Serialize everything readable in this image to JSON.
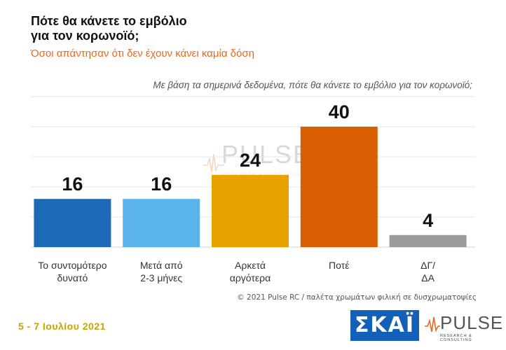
{
  "header": {
    "title_line1": "Πότε θα κάνετε το εμβόλιο",
    "title_line2": "για τον κορωνοϊό;",
    "subtitle": "Όσοι απάντησαν ότι δεν έχουν κάνει καμία δόση",
    "question": "Με βάση τα σημερινά δεδομένα, πότε θα κάνετε το εμβόλιο για τον κορωνοϊό;"
  },
  "chart_data": {
    "type": "bar",
    "categories": [
      [
        "Το συντομότερο",
        "δυνατό"
      ],
      [
        "Μετά από",
        "2-3 μήνες"
      ],
      [
        "Αρκετά",
        "αργότερα"
      ],
      [
        "Ποτέ"
      ],
      [
        "ΔΓ/",
        "ΔΑ"
      ]
    ],
    "values": [
      16,
      16,
      24,
      40,
      4
    ],
    "colors": [
      "#1c6ab5",
      "#58b4ea",
      "#e8a200",
      "#d95f02",
      "#9a9a9a"
    ],
    "ylim": [
      0,
      50
    ],
    "grid": true,
    "xlabel": "",
    "ylabel": ""
  },
  "footer": {
    "credit": "© 2021 Pulse RC  /  παλέτα χρωμάτων φιλική σε δυσχρωματοψίες",
    "date": "5 - 7 Ιουλίου 2021"
  },
  "logos": {
    "skai": "ΣΚΑΪ",
    "pulse": "PULSE",
    "pulse_sub": "RESEARCH & CONSULTING"
  }
}
